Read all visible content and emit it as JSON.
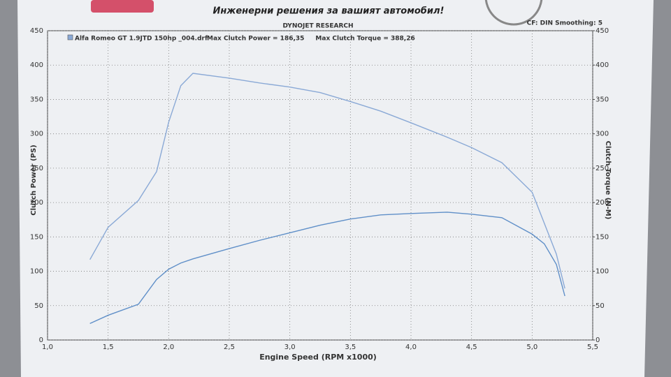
{
  "chart_data": {
    "type": "line",
    "header": "Инженерни решения за вашият автомобил!",
    "title": "DYNOJET RESEARCH",
    "subtitle": "CF: DIN  Smoothing: 5",
    "legend_title": "Alfa Romeo GT 1.9JTD 150hp _004.drf",
    "xlabel": "Engine Speed (RPM x1000)",
    "ylabel": "Clutch Power (PS)",
    "y2label": "Clutch Torque (N-M)",
    "x": [
      1.35,
      1.5,
      1.75,
      1.9,
      2.0,
      2.1,
      2.2,
      2.5,
      2.75,
      3.0,
      3.25,
      3.5,
      3.75,
      4.0,
      4.3,
      4.5,
      4.75,
      5.0,
      5.1,
      5.2,
      5.27
    ],
    "series": [
      {
        "name": "Max Clutch Power = 186,35",
        "color": "#5f8fc8",
        "axis": "y",
        "values": [
          24,
          36,
          52,
          88,
          103,
          112,
          118,
          133,
          145,
          156,
          167,
          176,
          182,
          184,
          186,
          183,
          178,
          154,
          140,
          110,
          64
        ]
      },
      {
        "name": "Max Clutch Torque = 388,26",
        "color": "#8aa9d6",
        "axis": "y2",
        "values": [
          117,
          164,
          203,
          245,
          317,
          370,
          388,
          381,
          374,
          368,
          360,
          347,
          333,
          316,
          295,
          280,
          258,
          215,
          170,
          125,
          75
        ]
      }
    ],
    "xlim": [
      1.0,
      5.5
    ],
    "xticks": [
      {
        "value": 1.0,
        "label": "1,0"
      },
      {
        "value": 1.5,
        "label": "1,5"
      },
      {
        "value": 2.0,
        "label": "2,0"
      },
      {
        "value": 2.5,
        "label": "2,5"
      },
      {
        "value": 3.0,
        "label": "3,0"
      },
      {
        "value": 3.5,
        "label": "3,5"
      },
      {
        "value": 4.0,
        "label": "4,0"
      },
      {
        "value": 4.5,
        "label": "4,5"
      },
      {
        "value": 5.0,
        "label": "5,0"
      },
      {
        "value": 5.5,
        "label": "5,5"
      }
    ],
    "ylim": [
      0,
      450
    ],
    "yticks": [
      0,
      50,
      100,
      150,
      200,
      250,
      300,
      350,
      400,
      450
    ],
    "y2lim": [
      0,
      450
    ],
    "y2ticks": [
      0,
      50,
      100,
      150,
      200,
      250,
      300,
      350,
      400,
      450
    ],
    "grid": true
  }
}
